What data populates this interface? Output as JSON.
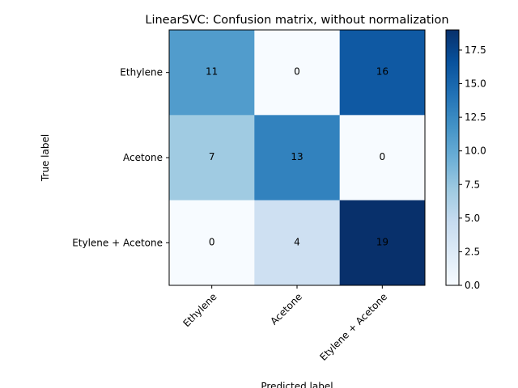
{
  "chart_data": {
    "type": "heatmap",
    "title": "LinearSVC: Confusion matrix, without normalization",
    "xlabel": "Predicted label",
    "ylabel": "True label",
    "x_categories": [
      "Ethylene",
      "Acetone",
      "Etylene + Acetone"
    ],
    "y_categories": [
      "Ethylene",
      "Acetone",
      "Etylene + Acetone"
    ],
    "values": [
      [
        11,
        0,
        16
      ],
      [
        7,
        13,
        0
      ],
      [
        0,
        4,
        19
      ]
    ],
    "colormap": "Blues",
    "colorbar": {
      "range": [
        0,
        19
      ],
      "ticks": [
        "0.0",
        "2.5",
        "5.0",
        "7.5",
        "10.0",
        "12.5",
        "15.0",
        "17.5"
      ]
    },
    "grid": false
  }
}
